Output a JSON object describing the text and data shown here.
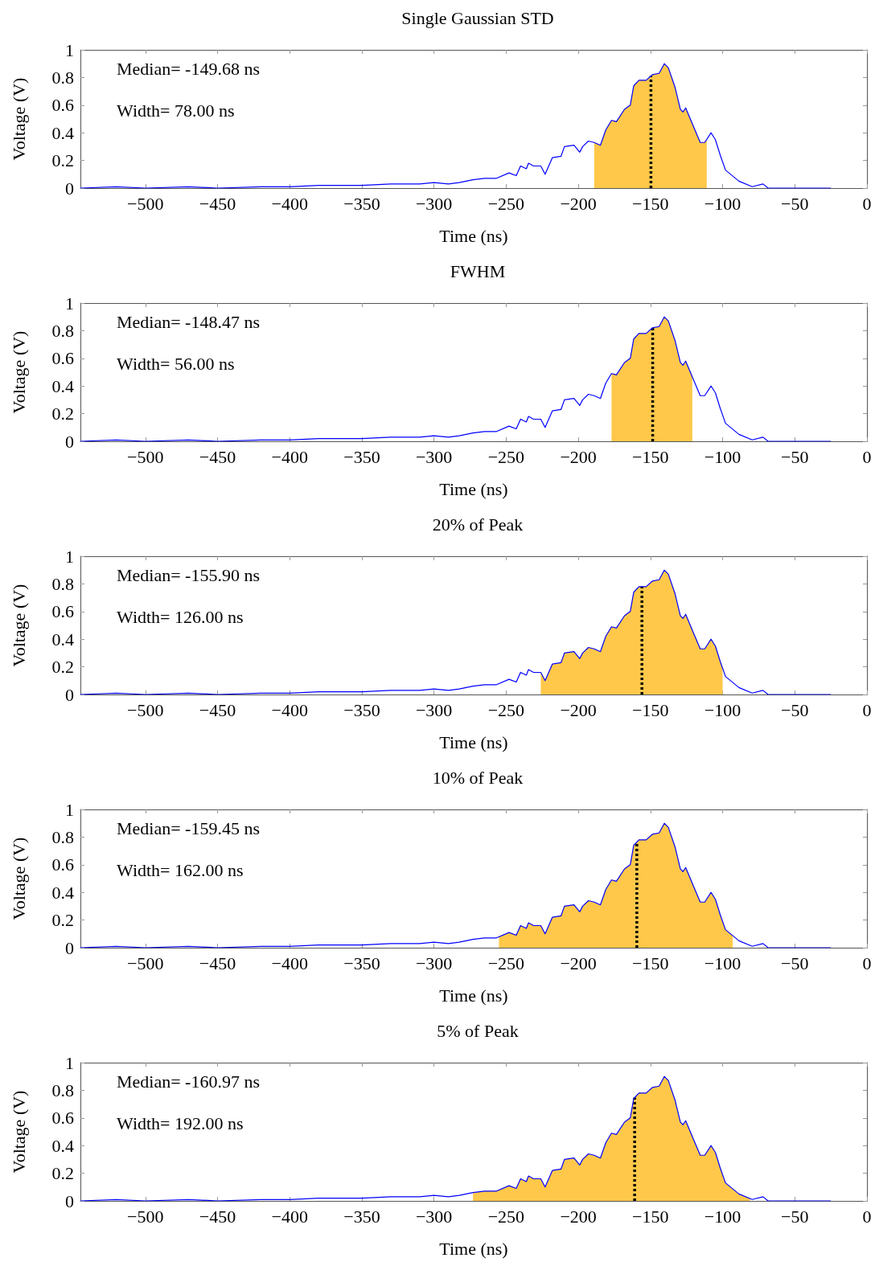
{
  "chart_data": [
    {
      "type": "line",
      "title": "Single Gaussian STD",
      "xlabel": "Time (ns)",
      "ylabel": "Voltage (V)",
      "annotations": [
        "Median= -149.68 ns",
        "Width= 78.00 ns"
      ],
      "xlim": [
        -545,
        0
      ],
      "xticks": [
        -500,
        -450,
        -400,
        -350,
        -300,
        -250,
        -200,
        -150,
        -100,
        -50,
        0
      ],
      "ylim": [
        0,
        1
      ],
      "yticks": [
        0,
        0.2,
        0.4,
        0.6,
        0.8,
        1
      ],
      "grid": false,
      "marker": "none",
      "x": [
        -545,
        -520,
        -500,
        -470,
        -450,
        -420,
        -400,
        -380,
        -350,
        -330,
        -310,
        -300,
        -290,
        -282.5,
        -273,
        -265,
        -257,
        -248,
        -243,
        -240,
        -236,
        -234.5,
        -231,
        -226,
        -223,
        -218,
        -212,
        -209.6,
        -203,
        -199,
        -197,
        -193,
        -189,
        -184.7,
        -181,
        -177,
        -173.6,
        -168,
        -164,
        -161.6,
        -158,
        -153,
        -148.7,
        -144,
        -140.4,
        -137.6,
        -133,
        -129.3,
        -127.5,
        -125.6,
        -120,
        -115.5,
        -112.4,
        -108,
        -105,
        -101.7,
        -98,
        -88.7,
        -79.5,
        -72,
        -68.5,
        -50,
        -25
      ],
      "series": [
        {
          "color": "#0000ff",
          "values": [
            0,
            0.01,
            0,
            0.01,
            0,
            0.01,
            0.01,
            0.02,
            0.02,
            0.03,
            0.03,
            0.04,
            0.03,
            0.04,
            0.06,
            0.07,
            0.07,
            0.11,
            0.09,
            0.16,
            0.14,
            0.18,
            0.16,
            0.16,
            0.1,
            0.22,
            0.23,
            0.3,
            0.31,
            0.26,
            0.3,
            0.34,
            0.33,
            0.31,
            0.42,
            0.49,
            0.48,
            0.57,
            0.6,
            0.74,
            0.78,
            0.78,
            0.82,
            0.83,
            0.9,
            0.87,
            0.73,
            0.57,
            0.55,
            0.58,
            0.44,
            0.33,
            0.33,
            0.4,
            0.35,
            0.24,
            0.13,
            0.05,
            0.01,
            0.03,
            0,
            0,
            0
          ]
        },
        {
          "type": "area",
          "color": "#ffc84a",
          "x": [
            -189,
            -184.7,
            -181,
            -177,
            -173.6,
            -168,
            -164,
            -161.6,
            -158,
            -153,
            -148.7,
            -144,
            -140.4,
            -137.6,
            -133,
            -129.3,
            -127.5,
            -125.6,
            -120,
            -115.5,
            -112.4,
            -111
          ],
          "values": [
            0.33,
            0.31,
            0.42,
            0.49,
            0.48,
            0.57,
            0.6,
            0.74,
            0.78,
            0.78,
            0.82,
            0.83,
            0.9,
            0.87,
            0.73,
            0.57,
            0.55,
            0.58,
            0.44,
            0.33,
            0.33,
            0.35
          ]
        }
      ],
      "ref_lines": [
        {
          "axis": "x",
          "value": -149.68,
          "color": "#000000",
          "line_style": "dotted"
        }
      ]
    },
    {
      "type": "line",
      "title": "FWHM",
      "xlabel": "Time (ns)",
      "ylabel": "Voltage (V)",
      "annotations": [
        "Median= -148.47 ns",
        "Width= 56.00 ns"
      ],
      "xlim": [
        -545,
        0
      ],
      "xticks": [
        -500,
        -450,
        -400,
        -350,
        -300,
        -250,
        -200,
        -150,
        -100,
        -50,
        0
      ],
      "ylim": [
        0,
        1
      ],
      "yticks": [
        0,
        0.2,
        0.4,
        0.6,
        0.8,
        1
      ],
      "grid": false,
      "marker": "none",
      "x": [
        -545,
        -520,
        -500,
        -470,
        -450,
        -420,
        -400,
        -380,
        -350,
        -330,
        -310,
        -300,
        -290,
        -282.5,
        -273,
        -265,
        -257,
        -248,
        -243,
        -240,
        -236,
        -234.5,
        -231,
        -226,
        -223,
        -218,
        -212,
        -209.6,
        -203,
        -199,
        -197,
        -193,
        -189,
        -184.7,
        -181,
        -177,
        -173.6,
        -168,
        -164,
        -161.6,
        -158,
        -153,
        -148.7,
        -144,
        -140.4,
        -137.6,
        -133,
        -129.3,
        -127.5,
        -125.6,
        -120,
        -115.5,
        -112.4,
        -108,
        -105,
        -101.7,
        -98,
        -88.7,
        -79.5,
        -72,
        -68.5,
        -50,
        -25
      ],
      "series": [
        {
          "color": "#0000ff",
          "values": [
            0,
            0.01,
            0,
            0.01,
            0,
            0.01,
            0.01,
            0.02,
            0.02,
            0.03,
            0.03,
            0.04,
            0.03,
            0.04,
            0.06,
            0.07,
            0.07,
            0.11,
            0.09,
            0.16,
            0.14,
            0.18,
            0.16,
            0.16,
            0.1,
            0.22,
            0.23,
            0.3,
            0.31,
            0.26,
            0.3,
            0.34,
            0.33,
            0.31,
            0.42,
            0.49,
            0.48,
            0.57,
            0.6,
            0.74,
            0.78,
            0.78,
            0.82,
            0.83,
            0.9,
            0.87,
            0.73,
            0.57,
            0.55,
            0.58,
            0.44,
            0.33,
            0.33,
            0.4,
            0.35,
            0.24,
            0.13,
            0.05,
            0.01,
            0.03,
            0,
            0,
            0
          ]
        },
        {
          "type": "area",
          "color": "#ffc84a",
          "x": [
            -177,
            -173.6,
            -168,
            -164,
            -161.6,
            -158,
            -153,
            -148.7,
            -144,
            -140.4,
            -137.6,
            -133,
            -129.3,
            -127.5,
            -125.6,
            -121
          ],
          "values": [
            0.49,
            0.48,
            0.57,
            0.6,
            0.74,
            0.78,
            0.78,
            0.82,
            0.83,
            0.9,
            0.87,
            0.73,
            0.57,
            0.55,
            0.58,
            0.47
          ]
        }
      ],
      "ref_lines": [
        {
          "axis": "x",
          "value": -148.47,
          "color": "#000000",
          "line_style": "dotted"
        }
      ]
    },
    {
      "type": "line",
      "title": "20% of Peak",
      "xlabel": "Time (ns)",
      "ylabel": "Voltage (V)",
      "annotations": [
        "Median= -155.90 ns",
        "Width= 126.00 ns"
      ],
      "xlim": [
        -545,
        0
      ],
      "xticks": [
        -500,
        -450,
        -400,
        -350,
        -300,
        -250,
        -200,
        -150,
        -100,
        -50,
        0
      ],
      "ylim": [
        0,
        1
      ],
      "yticks": [
        0,
        0.2,
        0.4,
        0.6,
        0.8,
        1
      ],
      "grid": false,
      "marker": "none",
      "x": [
        -545,
        -520,
        -500,
        -470,
        -450,
        -420,
        -400,
        -380,
        -350,
        -330,
        -310,
        -300,
        -290,
        -282.5,
        -273,
        -265,
        -257,
        -248,
        -243,
        -240,
        -236,
        -234.5,
        -231,
        -226,
        -223,
        -218,
        -212,
        -209.6,
        -203,
        -199,
        -197,
        -193,
        -189,
        -184.7,
        -181,
        -177,
        -173.6,
        -168,
        -164,
        -161.6,
        -158,
        -153,
        -148.7,
        -144,
        -140.4,
        -137.6,
        -133,
        -129.3,
        -127.5,
        -125.6,
        -120,
        -115.5,
        -112.4,
        -108,
        -105,
        -101.7,
        -98,
        -88.7,
        -79.5,
        -72,
        -68.5,
        -50,
        -25
      ],
      "series": [
        {
          "color": "#0000ff",
          "values": [
            0,
            0.01,
            0,
            0.01,
            0,
            0.01,
            0.01,
            0.02,
            0.02,
            0.03,
            0.03,
            0.04,
            0.03,
            0.04,
            0.06,
            0.07,
            0.07,
            0.11,
            0.09,
            0.16,
            0.14,
            0.18,
            0.16,
            0.16,
            0.1,
            0.22,
            0.23,
            0.3,
            0.31,
            0.26,
            0.3,
            0.34,
            0.33,
            0.31,
            0.42,
            0.49,
            0.48,
            0.57,
            0.6,
            0.74,
            0.78,
            0.78,
            0.82,
            0.83,
            0.9,
            0.87,
            0.73,
            0.57,
            0.55,
            0.58,
            0.44,
            0.33,
            0.33,
            0.4,
            0.35,
            0.24,
            0.13,
            0.05,
            0.01,
            0.03,
            0,
            0,
            0
          ]
        },
        {
          "type": "area",
          "color": "#ffc84a",
          "x": [
            -226,
            -223,
            -218,
            -212,
            -209.6,
            -203,
            -199,
            -197,
            -193,
            -189,
            -184.7,
            -181,
            -177,
            -173.6,
            -168,
            -164,
            -161.6,
            -158,
            -153,
            -148.7,
            -144,
            -140.4,
            -137.6,
            -133,
            -129.3,
            -127.5,
            -125.6,
            -120,
            -115.5,
            -112.4,
            -108,
            -105,
            -101.7,
            -100
          ],
          "values": [
            0.16,
            0.1,
            0.22,
            0.23,
            0.3,
            0.31,
            0.26,
            0.3,
            0.34,
            0.33,
            0.31,
            0.42,
            0.49,
            0.48,
            0.57,
            0.6,
            0.74,
            0.78,
            0.78,
            0.82,
            0.83,
            0.9,
            0.87,
            0.73,
            0.57,
            0.55,
            0.58,
            0.44,
            0.33,
            0.33,
            0.4,
            0.35,
            0.24,
            0.19
          ]
        }
      ],
      "ref_lines": [
        {
          "axis": "x",
          "value": -155.9,
          "color": "#000000",
          "line_style": "dotted"
        }
      ]
    },
    {
      "type": "line",
      "title": "10% of Peak",
      "xlabel": "Time (ns)",
      "ylabel": "Voltage (V)",
      "annotations": [
        "Median= -159.45 ns",
        "Width= 162.00 ns"
      ],
      "xlim": [
        -545,
        0
      ],
      "xticks": [
        -500,
        -450,
        -400,
        -350,
        -300,
        -250,
        -200,
        -150,
        -100,
        -50,
        0
      ],
      "ylim": [
        0,
        1
      ],
      "yticks": [
        0,
        0.2,
        0.4,
        0.6,
        0.8,
        1
      ],
      "grid": false,
      "marker": "none",
      "x": [
        -545,
        -520,
        -500,
        -470,
        -450,
        -420,
        -400,
        -380,
        -350,
        -330,
        -310,
        -300,
        -290,
        -282.5,
        -273,
        -265,
        -257,
        -248,
        -243,
        -240,
        -236,
        -234.5,
        -231,
        -226,
        -223,
        -218,
        -212,
        -209.6,
        -203,
        -199,
        -197,
        -193,
        -189,
        -184.7,
        -181,
        -177,
        -173.6,
        -168,
        -164,
        -161.6,
        -158,
        -153,
        -148.7,
        -144,
        -140.4,
        -137.6,
        -133,
        -129.3,
        -127.5,
        -125.6,
        -120,
        -115.5,
        -112.4,
        -108,
        -105,
        -101.7,
        -98,
        -88.7,
        -79.5,
        -72,
        -68.5,
        -50,
        -25
      ],
      "series": [
        {
          "color": "#0000ff",
          "values": [
            0,
            0.01,
            0,
            0.01,
            0,
            0.01,
            0.01,
            0.02,
            0.02,
            0.03,
            0.03,
            0.04,
            0.03,
            0.04,
            0.06,
            0.07,
            0.07,
            0.11,
            0.09,
            0.16,
            0.14,
            0.18,
            0.16,
            0.16,
            0.1,
            0.22,
            0.23,
            0.3,
            0.31,
            0.26,
            0.3,
            0.34,
            0.33,
            0.31,
            0.42,
            0.49,
            0.48,
            0.57,
            0.6,
            0.74,
            0.78,
            0.78,
            0.82,
            0.83,
            0.9,
            0.87,
            0.73,
            0.57,
            0.55,
            0.58,
            0.44,
            0.33,
            0.33,
            0.4,
            0.35,
            0.24,
            0.13,
            0.05,
            0.01,
            0.03,
            0,
            0,
            0
          ]
        },
        {
          "type": "area",
          "color": "#ffc84a",
          "x": [
            -255,
            -248,
            -243,
            -240,
            -236,
            -234.5,
            -231,
            -226,
            -223,
            -218,
            -212,
            -209.6,
            -203,
            -199,
            -197,
            -193,
            -189,
            -184.7,
            -181,
            -177,
            -173.6,
            -168,
            -164,
            -161.6,
            -158,
            -153,
            -148.7,
            -144,
            -140.4,
            -137.6,
            -133,
            -129.3,
            -127.5,
            -125.6,
            -120,
            -115.5,
            -112.4,
            -108,
            -105,
            -101.7,
            -98,
            -93
          ],
          "values": [
            0.08,
            0.11,
            0.09,
            0.16,
            0.14,
            0.18,
            0.16,
            0.16,
            0.1,
            0.22,
            0.23,
            0.3,
            0.31,
            0.26,
            0.3,
            0.34,
            0.33,
            0.31,
            0.42,
            0.49,
            0.48,
            0.57,
            0.6,
            0.74,
            0.78,
            0.78,
            0.82,
            0.83,
            0.9,
            0.87,
            0.73,
            0.57,
            0.55,
            0.58,
            0.44,
            0.33,
            0.33,
            0.4,
            0.35,
            0.24,
            0.13,
            0.09
          ]
        }
      ],
      "ref_lines": [
        {
          "axis": "x",
          "value": -159.45,
          "color": "#000000",
          "line_style": "dotted"
        }
      ]
    },
    {
      "type": "line",
      "title": "5% of Peak",
      "xlabel": "Time (ns)",
      "ylabel": "Voltage (V)",
      "annotations": [
        "Median= -160.97 ns",
        "Width= 192.00 ns"
      ],
      "xlim": [
        -545,
        0
      ],
      "xticks": [
        -500,
        -450,
        -400,
        -350,
        -300,
        -250,
        -200,
        -150,
        -100,
        -50,
        0
      ],
      "ylim": [
        0,
        1
      ],
      "yticks": [
        0,
        0.2,
        0.4,
        0.6,
        0.8,
        1
      ],
      "grid": false,
      "marker": "none",
      "x": [
        -545,
        -520,
        -500,
        -470,
        -450,
        -420,
        -400,
        -380,
        -350,
        -330,
        -310,
        -300,
        -290,
        -282.5,
        -273,
        -265,
        -257,
        -248,
        -243,
        -240,
        -236,
        -234.5,
        -231,
        -226,
        -223,
        -218,
        -212,
        -209.6,
        -203,
        -199,
        -197,
        -193,
        -189,
        -184.7,
        -181,
        -177,
        -173.6,
        -168,
        -164,
        -161.6,
        -158,
        -153,
        -148.7,
        -144,
        -140.4,
        -137.6,
        -133,
        -129.3,
        -127.5,
        -125.6,
        -120,
        -115.5,
        -112.4,
        -108,
        -105,
        -101.7,
        -98,
        -88.7,
        -79.5,
        -72,
        -68.5,
        -50,
        -25
      ],
      "series": [
        {
          "color": "#0000ff",
          "values": [
            0,
            0.01,
            0,
            0.01,
            0,
            0.01,
            0.01,
            0.02,
            0.02,
            0.03,
            0.03,
            0.04,
            0.03,
            0.04,
            0.06,
            0.07,
            0.07,
            0.11,
            0.09,
            0.16,
            0.14,
            0.18,
            0.16,
            0.16,
            0.1,
            0.22,
            0.23,
            0.3,
            0.31,
            0.26,
            0.3,
            0.34,
            0.33,
            0.31,
            0.42,
            0.49,
            0.48,
            0.57,
            0.6,
            0.74,
            0.78,
            0.78,
            0.82,
            0.83,
            0.9,
            0.87,
            0.73,
            0.57,
            0.55,
            0.58,
            0.44,
            0.33,
            0.33,
            0.4,
            0.35,
            0.24,
            0.13,
            0.05,
            0.01,
            0.03,
            0,
            0,
            0
          ]
        },
        {
          "type": "area",
          "color": "#ffc84a",
          "x": [
            -273,
            -265,
            -257,
            -248,
            -243,
            -240,
            -236,
            -234.5,
            -231,
            -226,
            -223,
            -218,
            -212,
            -209.6,
            -203,
            -199,
            -197,
            -193,
            -189,
            -184.7,
            -181,
            -177,
            -173.6,
            -168,
            -164,
            -161.6,
            -158,
            -153,
            -148.7,
            -144,
            -140.4,
            -137.6,
            -133,
            -129.3,
            -127.5,
            -125.6,
            -120,
            -115.5,
            -112.4,
            -108,
            -105,
            -101.7,
            -98,
            -88.7,
            -81
          ],
          "values": [
            0.06,
            0.07,
            0.07,
            0.11,
            0.09,
            0.16,
            0.14,
            0.18,
            0.16,
            0.16,
            0.1,
            0.22,
            0.23,
            0.3,
            0.31,
            0.26,
            0.3,
            0.34,
            0.33,
            0.31,
            0.42,
            0.49,
            0.48,
            0.57,
            0.6,
            0.74,
            0.78,
            0.78,
            0.82,
            0.83,
            0.9,
            0.87,
            0.73,
            0.57,
            0.55,
            0.58,
            0.44,
            0.33,
            0.33,
            0.4,
            0.35,
            0.24,
            0.13,
            0.05,
            0.02
          ]
        }
      ],
      "ref_lines": [
        {
          "axis": "x",
          "value": -160.97,
          "color": "#000000",
          "line_style": "dotted"
        }
      ]
    }
  ]
}
